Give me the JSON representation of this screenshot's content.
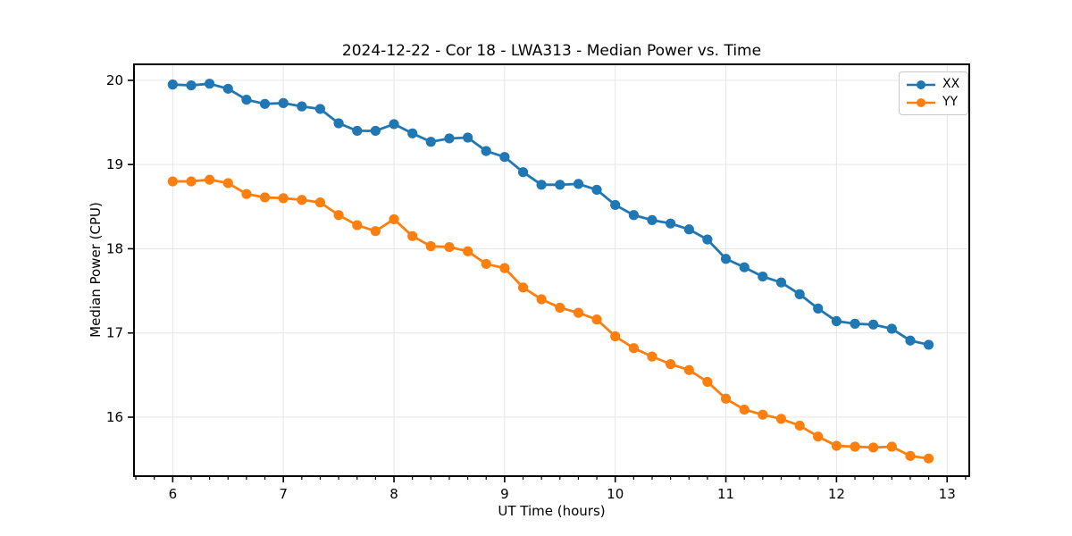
{
  "chart_data": {
    "type": "line",
    "title": "2024-12-22 - Cor 18 - LWA313 - Median Power vs. Time",
    "xlabel": "UT Time (hours)",
    "ylabel": "Median Power (CPU)",
    "x": [
      6.0,
      6.167,
      6.333,
      6.5,
      6.667,
      6.833,
      7.0,
      7.167,
      7.333,
      7.5,
      7.667,
      7.833,
      8.0,
      8.167,
      8.333,
      8.5,
      8.667,
      8.833,
      9.0,
      9.167,
      9.333,
      9.5,
      9.667,
      9.833,
      10.0,
      10.167,
      10.333,
      10.5,
      10.667,
      10.833,
      11.0,
      11.167,
      11.333,
      11.5,
      11.667,
      11.833,
      12.0,
      12.167,
      12.333,
      12.5,
      12.667,
      12.833
    ],
    "series": [
      {
        "name": "XX",
        "color": "#1f77b4",
        "values": [
          19.95,
          19.94,
          19.96,
          19.9,
          19.77,
          19.72,
          19.73,
          19.69,
          19.66,
          19.49,
          19.4,
          19.4,
          19.48,
          19.37,
          19.27,
          19.31,
          19.32,
          19.16,
          19.09,
          18.91,
          18.76,
          18.76,
          18.77,
          18.7,
          18.52,
          18.4,
          18.34,
          18.3,
          18.23,
          18.11,
          17.88,
          17.78,
          17.67,
          17.6,
          17.46,
          17.29,
          17.14,
          17.11,
          17.1,
          17.05,
          16.91,
          16.86
        ]
      },
      {
        "name": "YY",
        "color": "#ff7f0e",
        "values": [
          18.8,
          18.8,
          18.82,
          18.78,
          18.65,
          18.61,
          18.6,
          18.58,
          18.55,
          18.4,
          18.28,
          18.21,
          18.35,
          18.15,
          18.03,
          18.02,
          17.97,
          17.82,
          17.77,
          17.54,
          17.4,
          17.3,
          17.24,
          17.16,
          16.96,
          16.82,
          16.72,
          16.63,
          16.56,
          16.42,
          16.22,
          16.09,
          16.03,
          15.98,
          15.9,
          15.77,
          15.66,
          15.65,
          15.64,
          15.65,
          15.54,
          15.51
        ]
      }
    ],
    "xlim": [
      5.65,
      13.2
    ],
    "ylim": [
      15.3,
      20.19
    ],
    "xticks": [
      6,
      7,
      8,
      9,
      10,
      11,
      12,
      13
    ],
    "yticks": [
      16,
      17,
      18,
      19,
      20
    ],
    "x_minor_divisions": 6,
    "grid": true,
    "legend_position": "upper right",
    "colors": {
      "grid": "#e6e6e6",
      "spine": "#000000",
      "tick_text": "#000000"
    }
  }
}
